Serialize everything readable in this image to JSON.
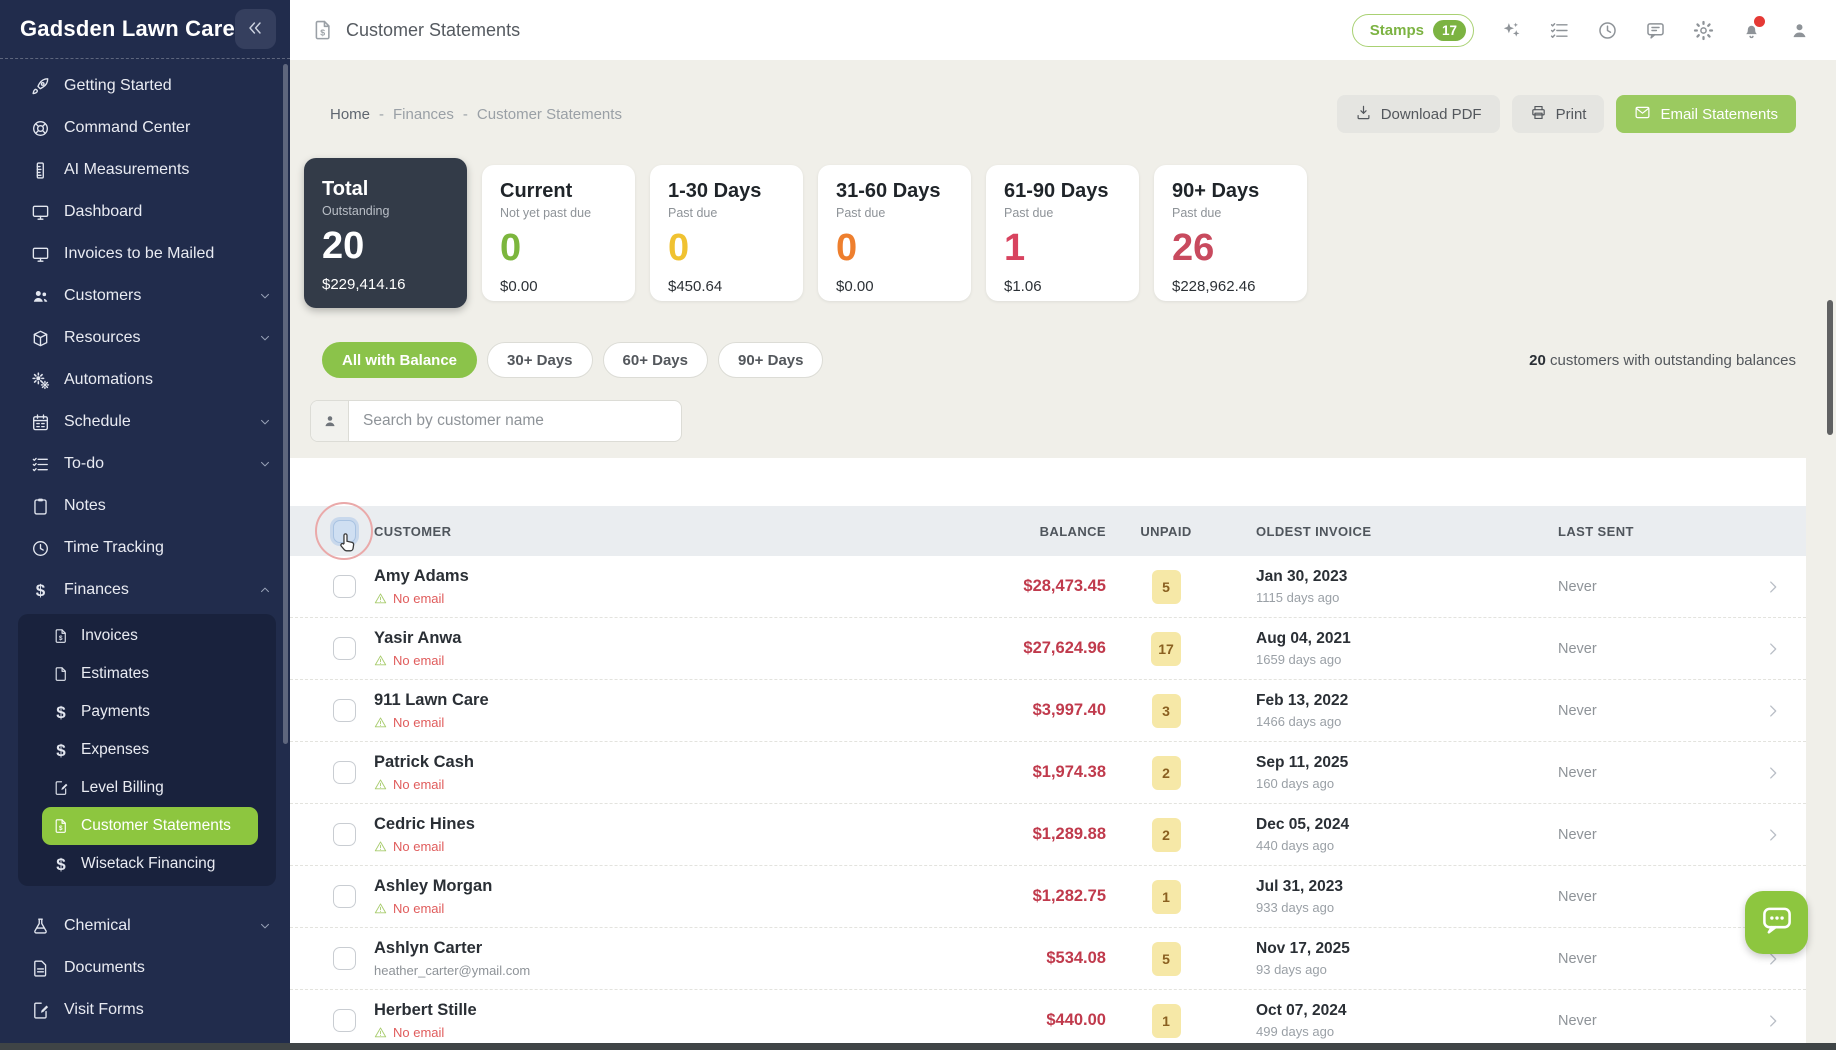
{
  "app": {
    "name": "Gadsden Lawn Care"
  },
  "colors": {
    "sidebar_bg": "#212c4c",
    "accent_green": "#8bc34a",
    "active_item_green": "#8dc63f",
    "balance_red": "#c03a4c",
    "badge_yellow_bg": "#f6e8a7",
    "content_bg": "#f0efe9",
    "dark_card_bg": "#333b48",
    "notification_red": "#e53935"
  },
  "sidebar": {
    "items": [
      {
        "label": "Getting Started",
        "icon": "rocket"
      },
      {
        "label": "Command Center",
        "icon": "lifering"
      },
      {
        "label": "AI Measurements",
        "icon": "ruler"
      },
      {
        "label": "Dashboard",
        "icon": "monitor"
      },
      {
        "label": "Invoices to be Mailed",
        "icon": "monitor"
      },
      {
        "label": "Customers",
        "icon": "users",
        "chevron": "down"
      },
      {
        "label": "Resources",
        "icon": "box",
        "chevron": "down"
      },
      {
        "label": "Automations",
        "icon": "gears"
      },
      {
        "label": "Schedule",
        "icon": "calendar",
        "chevron": "down"
      },
      {
        "label": "To-do",
        "icon": "todo",
        "chevron": "down"
      },
      {
        "label": "Notes",
        "icon": "clipboard"
      },
      {
        "label": "Time Tracking",
        "icon": "clock"
      },
      {
        "label": "Finances",
        "icon": "glyph:$",
        "chevron": "up",
        "children": [
          {
            "label": "Invoices",
            "icon": "filedollar"
          },
          {
            "label": "Estimates",
            "icon": "file"
          },
          {
            "label": "Payments",
            "icon": "glyph:$"
          },
          {
            "label": "Expenses",
            "icon": "glyph:$"
          },
          {
            "label": "Level Billing",
            "icon": "filepen"
          },
          {
            "label": "Customer Statements",
            "icon": "filedollar",
            "active": true
          },
          {
            "label": "Wisetack Financing",
            "icon": "glyph:$"
          }
        ]
      },
      {
        "label": "Chemical",
        "icon": "flask",
        "chevron": "down",
        "gap_before": true
      },
      {
        "label": "Documents",
        "icon": "doc"
      },
      {
        "label": "Visit Forms",
        "icon": "filepen"
      }
    ]
  },
  "header": {
    "title": "Customer Statements",
    "stamps_label": "Stamps",
    "stamps_count": "17",
    "icons": [
      "sparkles",
      "checklist",
      "clock",
      "chat",
      "gear",
      "bell",
      "user"
    ]
  },
  "breadcrumb": {
    "items": [
      "Home",
      "Finances",
      "Customer Statements"
    ],
    "separator": "-"
  },
  "actions": {
    "download": "Download PDF",
    "print": "Print",
    "email": "Email Statements"
  },
  "summary_cards": [
    {
      "title": "Total",
      "subtitle": "Outstanding",
      "count": "20",
      "amount": "$229,414.16",
      "count_color": "#ffffff",
      "dark": true,
      "selected": true
    },
    {
      "title": "Current",
      "subtitle": "Not yet past due",
      "count": "0",
      "amount": "$0.00",
      "count_color": "#7cb63d"
    },
    {
      "title": "1-30 Days",
      "subtitle": "Past due",
      "count": "0",
      "amount": "$450.64",
      "count_color": "#f0c231"
    },
    {
      "title": "31-60 Days",
      "subtitle": "Past due",
      "count": "0",
      "amount": "$0.00",
      "count_color": "#ee7f2e"
    },
    {
      "title": "61-90 Days",
      "subtitle": "Past due",
      "count": "1",
      "amount": "$1.06",
      "count_color": "#d8435f"
    },
    {
      "title": "90+ Days",
      "subtitle": "Past due",
      "count": "26",
      "amount": "$228,962.46",
      "count_color": "#c84a5e"
    }
  ],
  "filters": {
    "pills": [
      {
        "label": "All with Balance",
        "active": true
      },
      {
        "label": "30+ Days"
      },
      {
        "label": "60+ Days"
      },
      {
        "label": "90+ Days"
      }
    ],
    "summary_bold": "20",
    "summary_rest": " customers with outstanding balances"
  },
  "search": {
    "placeholder": "Search by customer name"
  },
  "table": {
    "columns": [
      "CUSTOMER",
      "BALANCE",
      "UNPAID",
      "OLDEST INVOICE",
      "LAST SENT"
    ],
    "rows": [
      {
        "name": "Amy Adams",
        "email": "No email",
        "no_email": true,
        "balance": "$28,473.45",
        "unpaid": "5",
        "invoice_date": "Jan 30, 2023",
        "invoice_ago": "1115 days ago",
        "last_sent": "Never"
      },
      {
        "name": "Yasir Anwa",
        "email": "No email",
        "no_email": true,
        "balance": "$27,624.96",
        "unpaid": "17",
        "invoice_date": "Aug 04, 2021",
        "invoice_ago": "1659 days ago",
        "last_sent": "Never"
      },
      {
        "name": "911 Lawn Care",
        "email": "No email",
        "no_email": true,
        "balance": "$3,997.40",
        "unpaid": "3",
        "invoice_date": "Feb 13, 2022",
        "invoice_ago": "1466 days ago",
        "last_sent": "Never"
      },
      {
        "name": "Patrick Cash",
        "email": "No email",
        "no_email": true,
        "balance": "$1,974.38",
        "unpaid": "2",
        "invoice_date": "Sep 11, 2025",
        "invoice_ago": "160 days ago",
        "last_sent": "Never"
      },
      {
        "name": "Cedric Hines",
        "email": "No email",
        "no_email": true,
        "balance": "$1,289.88",
        "unpaid": "2",
        "invoice_date": "Dec 05, 2024",
        "invoice_ago": "440 days ago",
        "last_sent": "Never"
      },
      {
        "name": "Ashley Morgan",
        "email": "No email",
        "no_email": true,
        "balance": "$1,282.75",
        "unpaid": "1",
        "invoice_date": "Jul 31, 2023",
        "invoice_ago": "933 days ago",
        "last_sent": "Never"
      },
      {
        "name": "Ashlyn Carter",
        "email": "heather_carter@ymail.com",
        "no_email": false,
        "balance": "$534.08",
        "unpaid": "5",
        "invoice_date": "Nov 17, 2025",
        "invoice_ago": "93 days ago",
        "last_sent": "Never"
      },
      {
        "name": "Herbert Stille",
        "email": "No email",
        "no_email": true,
        "balance": "$440.00",
        "unpaid": "1",
        "invoice_date": "Oct 07, 2024",
        "invoice_ago": "499 days ago",
        "last_sent": "Never"
      }
    ]
  }
}
